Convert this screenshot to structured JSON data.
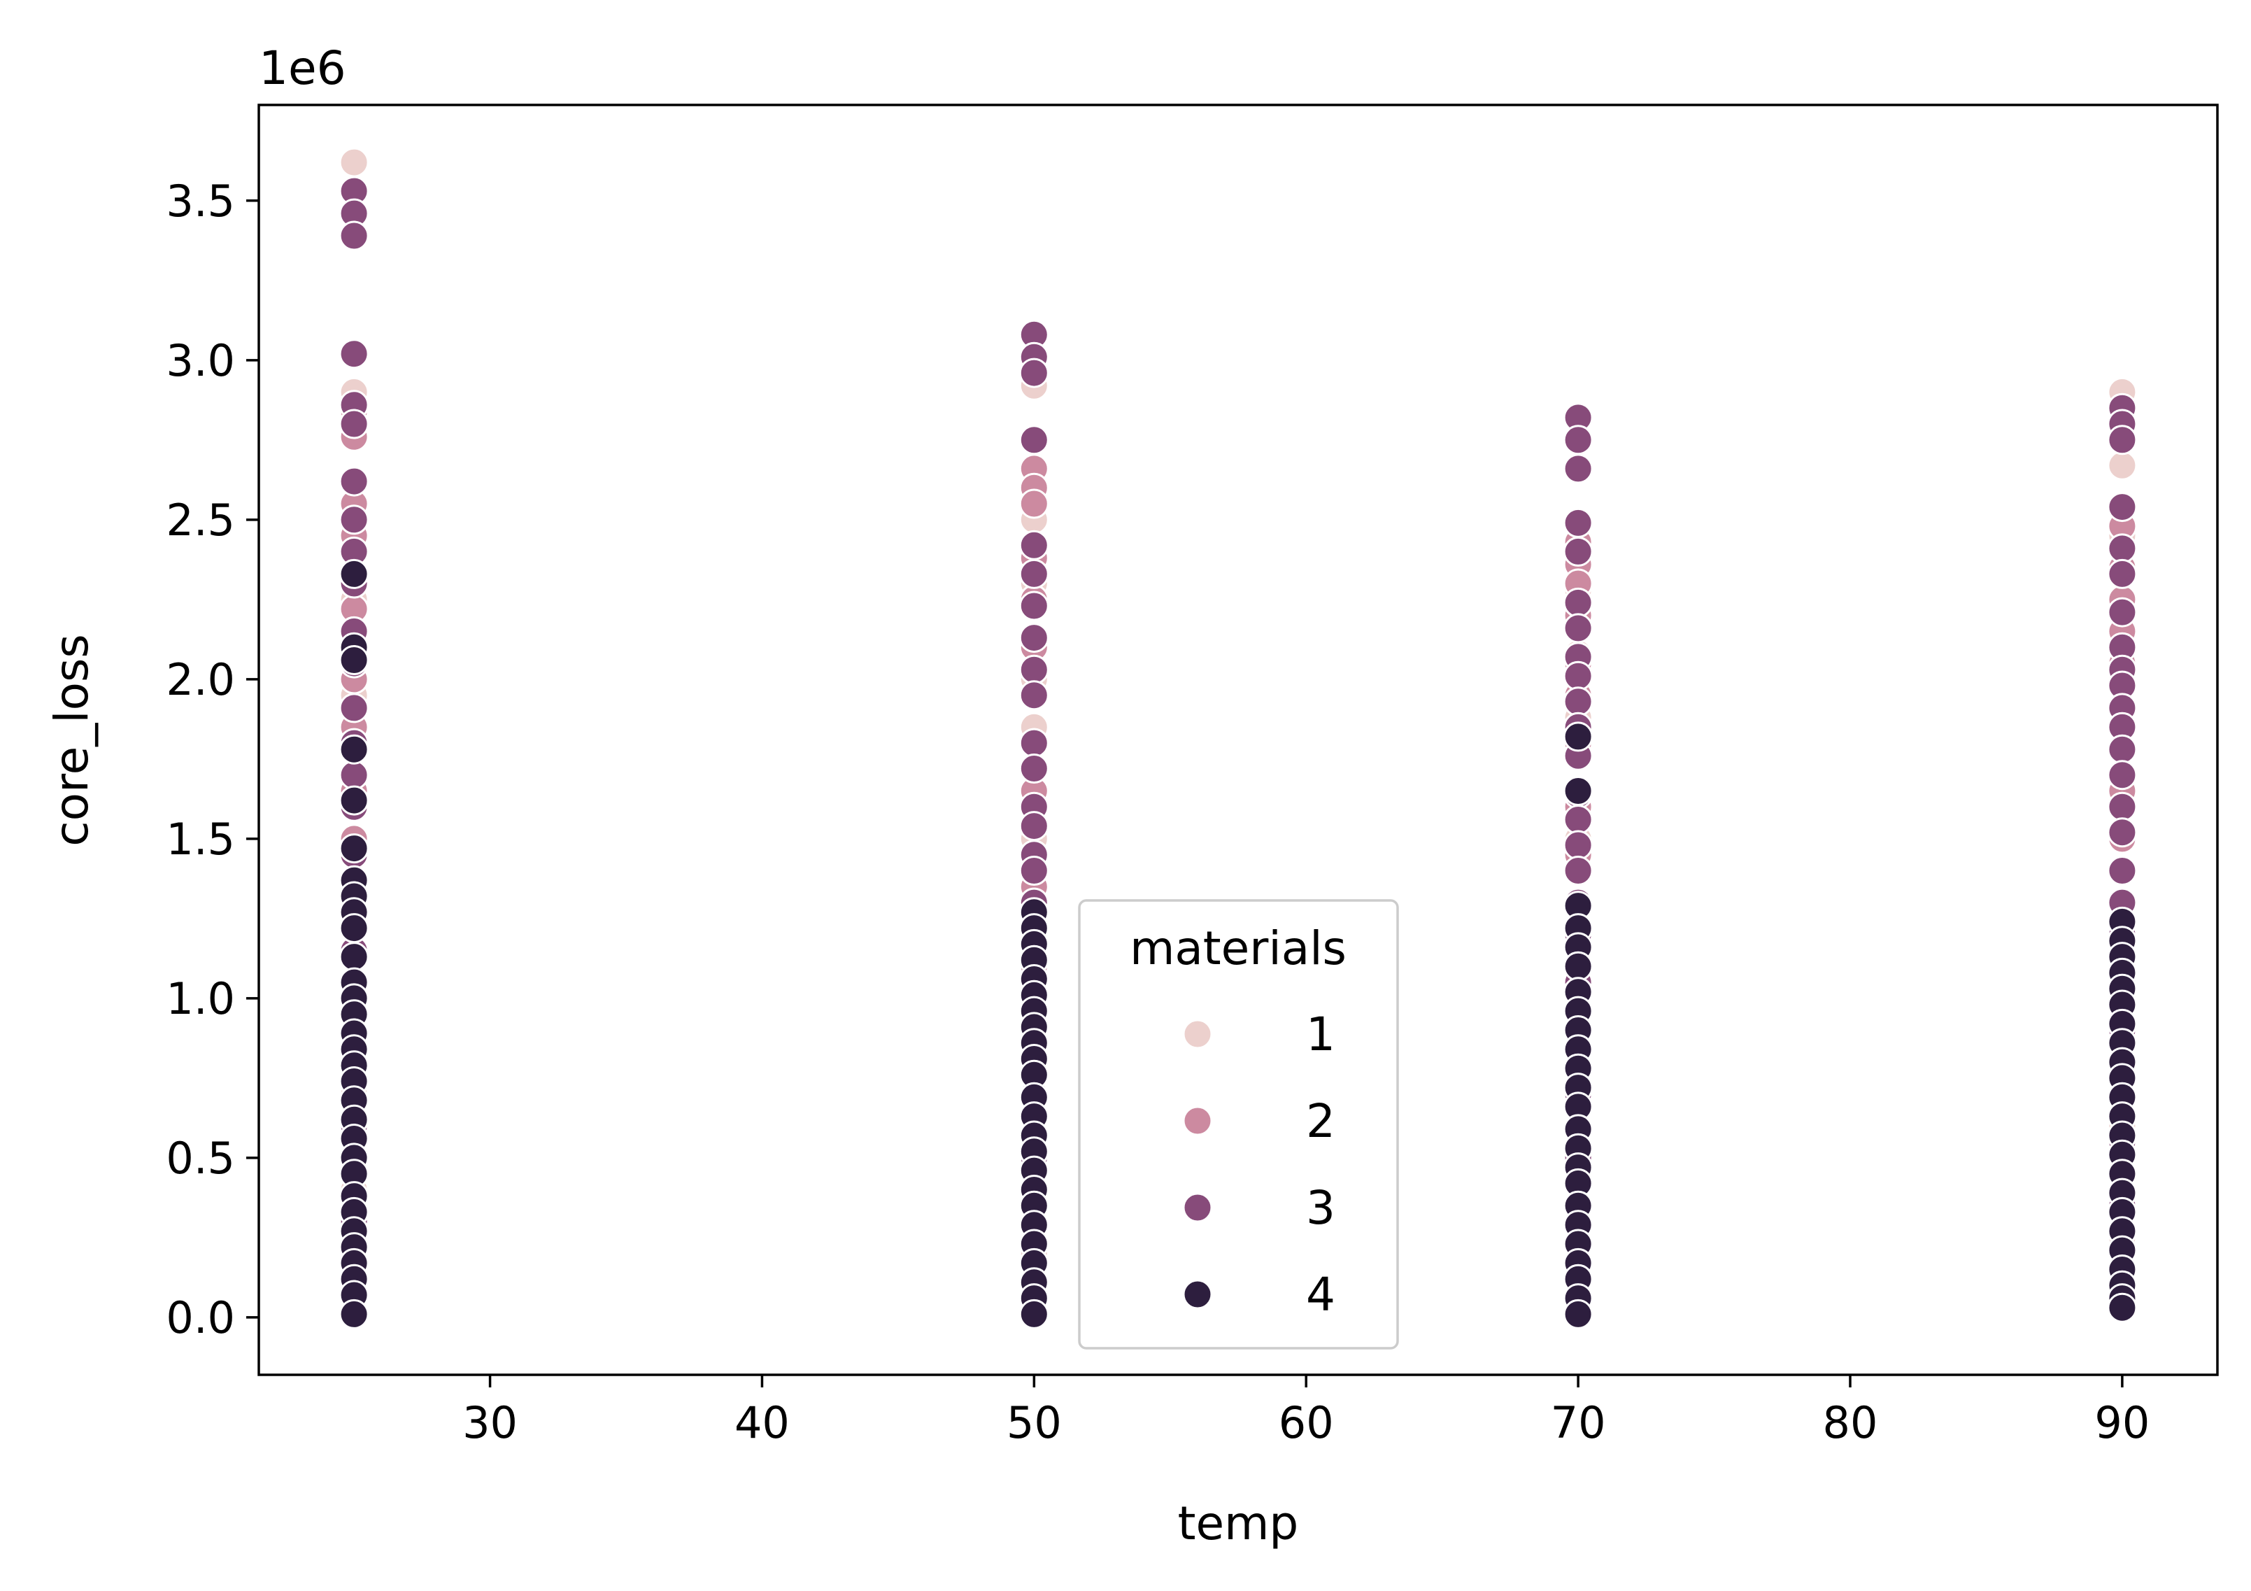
{
  "chart_data": {
    "type": "scatter",
    "title": "",
    "xlabel": "temp",
    "ylabel": "core_loss",
    "y_offset_label": "1e6",
    "xlim": [
      21.5,
      93.5
    ],
    "ylim": [
      -180000,
      3800000
    ],
    "x_ticks": [
      30,
      40,
      50,
      60,
      70,
      80,
      90
    ],
    "y_ticks": [
      0,
      500000,
      1000000,
      1500000,
      2000000,
      2500000,
      3000000,
      3500000
    ],
    "x_tick_labels": [
      "30",
      "40",
      "50",
      "60",
      "70",
      "80",
      "90"
    ],
    "y_tick_labels": [
      "0.0",
      "0.5",
      "1.0",
      "1.5",
      "2.0",
      "2.5",
      "3.0",
      "3.5"
    ],
    "grid": false,
    "legend": {
      "title": "materials",
      "placement": "lower-center"
    },
    "series": [
      {
        "name": "1",
        "color": "#ecd0cd",
        "points": [
          [
            25,
            3620000
          ],
          [
            25,
            2900000
          ],
          [
            25,
            2450000
          ],
          [
            25,
            2250000
          ],
          [
            25,
            1950000
          ],
          [
            25,
            1600000
          ],
          [
            25,
            1300000
          ],
          [
            25,
            1000000
          ],
          [
            25,
            700000
          ],
          [
            25,
            400000
          ],
          [
            25,
            150000
          ],
          [
            50,
            2920000
          ],
          [
            50,
            2500000
          ],
          [
            50,
            2300000
          ],
          [
            50,
            2000000
          ],
          [
            50,
            1850000
          ],
          [
            50,
            1500000
          ],
          [
            50,
            1250000
          ],
          [
            50,
            900000
          ],
          [
            50,
            500000
          ],
          [
            50,
            200000
          ],
          [
            70,
            2480000
          ],
          [
            70,
            2280000
          ],
          [
            70,
            2080000
          ],
          [
            70,
            1880000
          ],
          [
            70,
            1500000
          ],
          [
            70,
            1100000
          ],
          [
            70,
            700000
          ],
          [
            70,
            300000
          ],
          [
            90,
            2900000
          ],
          [
            90,
            2670000
          ],
          [
            90,
            2450000
          ],
          [
            90,
            2200000
          ],
          [
            90,
            2000000
          ],
          [
            90,
            1700000
          ],
          [
            90,
            1400000
          ],
          [
            90,
            1000000
          ],
          [
            90,
            600000
          ],
          [
            90,
            250000
          ]
        ]
      },
      {
        "name": "2",
        "color": "#cc8aa0",
        "points": [
          [
            25,
            2840000
          ],
          [
            25,
            2760000
          ],
          [
            25,
            2550000
          ],
          [
            25,
            2450000
          ],
          [
            25,
            2300000
          ],
          [
            25,
            2220000
          ],
          [
            25,
            2150000
          ],
          [
            25,
            2000000
          ],
          [
            25,
            1850000
          ],
          [
            25,
            1650000
          ],
          [
            25,
            1500000
          ],
          [
            25,
            1300000
          ],
          [
            25,
            1150000
          ],
          [
            25,
            900000
          ],
          [
            25,
            600000
          ],
          [
            25,
            300000
          ],
          [
            50,
            2660000
          ],
          [
            50,
            2600000
          ],
          [
            50,
            2550000
          ],
          [
            50,
            2380000
          ],
          [
            50,
            2250000
          ],
          [
            50,
            2100000
          ],
          [
            50,
            1950000
          ],
          [
            50,
            1800000
          ],
          [
            50,
            1650000
          ],
          [
            50,
            1450000
          ],
          [
            50,
            1350000
          ],
          [
            50,
            1100000
          ],
          [
            50,
            800000
          ],
          [
            50,
            400000
          ],
          [
            70,
            2430000
          ],
          [
            70,
            2360000
          ],
          [
            70,
            2300000
          ],
          [
            70,
            2200000
          ],
          [
            70,
            2050000
          ],
          [
            70,
            1950000
          ],
          [
            70,
            1800000
          ],
          [
            70,
            1600000
          ],
          [
            70,
            1450000
          ],
          [
            70,
            1200000
          ],
          [
            70,
            900000
          ],
          [
            70,
            500000
          ],
          [
            90,
            2480000
          ],
          [
            90,
            2350000
          ],
          [
            90,
            2250000
          ],
          [
            90,
            2150000
          ],
          [
            90,
            2050000
          ],
          [
            90,
            1900000
          ],
          [
            90,
            1780000
          ],
          [
            90,
            1650000
          ],
          [
            90,
            1500000
          ],
          [
            90,
            1300000
          ],
          [
            90,
            1100000
          ],
          [
            90,
            800000
          ],
          [
            90,
            400000
          ]
        ]
      },
      {
        "name": "3",
        "color": "#874b7a",
        "points": [
          [
            25,
            3530000
          ],
          [
            25,
            3460000
          ],
          [
            25,
            3390000
          ],
          [
            25,
            3020000
          ],
          [
            25,
            2860000
          ],
          [
            25,
            2800000
          ],
          [
            25,
            2620000
          ],
          [
            25,
            2500000
          ],
          [
            25,
            2400000
          ],
          [
            25,
            2300000
          ],
          [
            25,
            2150000
          ],
          [
            25,
            2050000
          ],
          [
            25,
            1910000
          ],
          [
            25,
            1800000
          ],
          [
            25,
            1700000
          ],
          [
            25,
            1600000
          ],
          [
            25,
            1450000
          ],
          [
            25,
            1350000
          ],
          [
            25,
            1250000
          ],
          [
            25,
            1150000
          ],
          [
            25,
            1050000
          ],
          [
            25,
            900000
          ],
          [
            25,
            750000
          ],
          [
            25,
            600000
          ],
          [
            25,
            450000
          ],
          [
            25,
            300000
          ],
          [
            25,
            150000
          ],
          [
            50,
            3080000
          ],
          [
            50,
            3010000
          ],
          [
            50,
            2960000
          ],
          [
            50,
            2750000
          ],
          [
            50,
            2420000
          ],
          [
            50,
            2330000
          ],
          [
            50,
            2230000
          ],
          [
            50,
            2130000
          ],
          [
            50,
            2030000
          ],
          [
            50,
            1950000
          ],
          [
            50,
            1800000
          ],
          [
            50,
            1720000
          ],
          [
            50,
            1600000
          ],
          [
            50,
            1540000
          ],
          [
            50,
            1450000
          ],
          [
            50,
            1400000
          ],
          [
            50,
            1300000
          ],
          [
            50,
            1200000
          ],
          [
            50,
            1050000
          ],
          [
            50,
            900000
          ],
          [
            50,
            700000
          ],
          [
            50,
            500000
          ],
          [
            50,
            300000
          ],
          [
            50,
            100000
          ],
          [
            70,
            2820000
          ],
          [
            70,
            2750000
          ],
          [
            70,
            2660000
          ],
          [
            70,
            2490000
          ],
          [
            70,
            2400000
          ],
          [
            70,
            2240000
          ],
          [
            70,
            2160000
          ],
          [
            70,
            2070000
          ],
          [
            70,
            2010000
          ],
          [
            70,
            1930000
          ],
          [
            70,
            1850000
          ],
          [
            70,
            1760000
          ],
          [
            70,
            1640000
          ],
          [
            70,
            1560000
          ],
          [
            70,
            1480000
          ],
          [
            70,
            1400000
          ],
          [
            70,
            1300000
          ],
          [
            70,
            1200000
          ],
          [
            70,
            1050000
          ],
          [
            70,
            900000
          ],
          [
            70,
            700000
          ],
          [
            70,
            500000
          ],
          [
            70,
            300000
          ],
          [
            90,
            2850000
          ],
          [
            90,
            2800000
          ],
          [
            90,
            2750000
          ],
          [
            90,
            2540000
          ],
          [
            90,
            2410000
          ],
          [
            90,
            2330000
          ],
          [
            90,
            2210000
          ],
          [
            90,
            2100000
          ],
          [
            90,
            2030000
          ],
          [
            90,
            1980000
          ],
          [
            90,
            1910000
          ],
          [
            90,
            1850000
          ],
          [
            90,
            1780000
          ],
          [
            90,
            1700000
          ],
          [
            90,
            1600000
          ],
          [
            90,
            1520000
          ],
          [
            90,
            1400000
          ],
          [
            90,
            1300000
          ],
          [
            90,
            1200000
          ],
          [
            90,
            1050000
          ],
          [
            90,
            900000
          ],
          [
            90,
            750000
          ],
          [
            90,
            550000
          ],
          [
            90,
            350000
          ],
          [
            90,
            150000
          ]
        ]
      },
      {
        "name": "4",
        "color": "#2d1e3e",
        "points": [
          [
            25,
            2330000
          ],
          [
            25,
            2100000
          ],
          [
            25,
            2060000
          ],
          [
            25,
            1780000
          ],
          [
            25,
            1620000
          ],
          [
            25,
            1470000
          ],
          [
            25,
            1370000
          ],
          [
            25,
            1320000
          ],
          [
            25,
            1270000
          ],
          [
            25,
            1220000
          ],
          [
            25,
            1130000
          ],
          [
            25,
            1050000
          ],
          [
            25,
            1000000
          ],
          [
            25,
            950000
          ],
          [
            25,
            890000
          ],
          [
            25,
            840000
          ],
          [
            25,
            790000
          ],
          [
            25,
            740000
          ],
          [
            25,
            680000
          ],
          [
            25,
            620000
          ],
          [
            25,
            560000
          ],
          [
            25,
            500000
          ],
          [
            25,
            450000
          ],
          [
            25,
            380000
          ],
          [
            25,
            330000
          ],
          [
            25,
            270000
          ],
          [
            25,
            220000
          ],
          [
            25,
            170000
          ],
          [
            25,
            120000
          ],
          [
            25,
            70000
          ],
          [
            25,
            10000
          ],
          [
            50,
            1270000
          ],
          [
            50,
            1220000
          ],
          [
            50,
            1170000
          ],
          [
            50,
            1120000
          ],
          [
            50,
            1060000
          ],
          [
            50,
            1010000
          ],
          [
            50,
            960000
          ],
          [
            50,
            910000
          ],
          [
            50,
            860000
          ],
          [
            50,
            810000
          ],
          [
            50,
            760000
          ],
          [
            50,
            690000
          ],
          [
            50,
            630000
          ],
          [
            50,
            570000
          ],
          [
            50,
            520000
          ],
          [
            50,
            460000
          ],
          [
            50,
            400000
          ],
          [
            50,
            350000
          ],
          [
            50,
            290000
          ],
          [
            50,
            230000
          ],
          [
            50,
            170000
          ],
          [
            50,
            110000
          ],
          [
            50,
            60000
          ],
          [
            50,
            10000
          ],
          [
            70,
            1820000
          ],
          [
            70,
            1650000
          ],
          [
            70,
            1290000
          ],
          [
            70,
            1220000
          ],
          [
            70,
            1160000
          ],
          [
            70,
            1100000
          ],
          [
            70,
            1020000
          ],
          [
            70,
            960000
          ],
          [
            70,
            900000
          ],
          [
            70,
            840000
          ],
          [
            70,
            780000
          ],
          [
            70,
            720000
          ],
          [
            70,
            660000
          ],
          [
            70,
            590000
          ],
          [
            70,
            530000
          ],
          [
            70,
            470000
          ],
          [
            70,
            420000
          ],
          [
            70,
            350000
          ],
          [
            70,
            290000
          ],
          [
            70,
            230000
          ],
          [
            70,
            170000
          ],
          [
            70,
            120000
          ],
          [
            70,
            60000
          ],
          [
            70,
            10000
          ],
          [
            90,
            1240000
          ],
          [
            90,
            1180000
          ],
          [
            90,
            1130000
          ],
          [
            90,
            1080000
          ],
          [
            90,
            1030000
          ],
          [
            90,
            980000
          ],
          [
            90,
            920000
          ],
          [
            90,
            860000
          ],
          [
            90,
            800000
          ],
          [
            90,
            750000
          ],
          [
            90,
            690000
          ],
          [
            90,
            630000
          ],
          [
            90,
            570000
          ],
          [
            90,
            510000
          ],
          [
            90,
            450000
          ],
          [
            90,
            390000
          ],
          [
            90,
            330000
          ],
          [
            90,
            270000
          ],
          [
            90,
            210000
          ],
          [
            90,
            150000
          ],
          [
            90,
            100000
          ],
          [
            90,
            60000
          ],
          [
            90,
            30000
          ]
        ]
      }
    ]
  }
}
